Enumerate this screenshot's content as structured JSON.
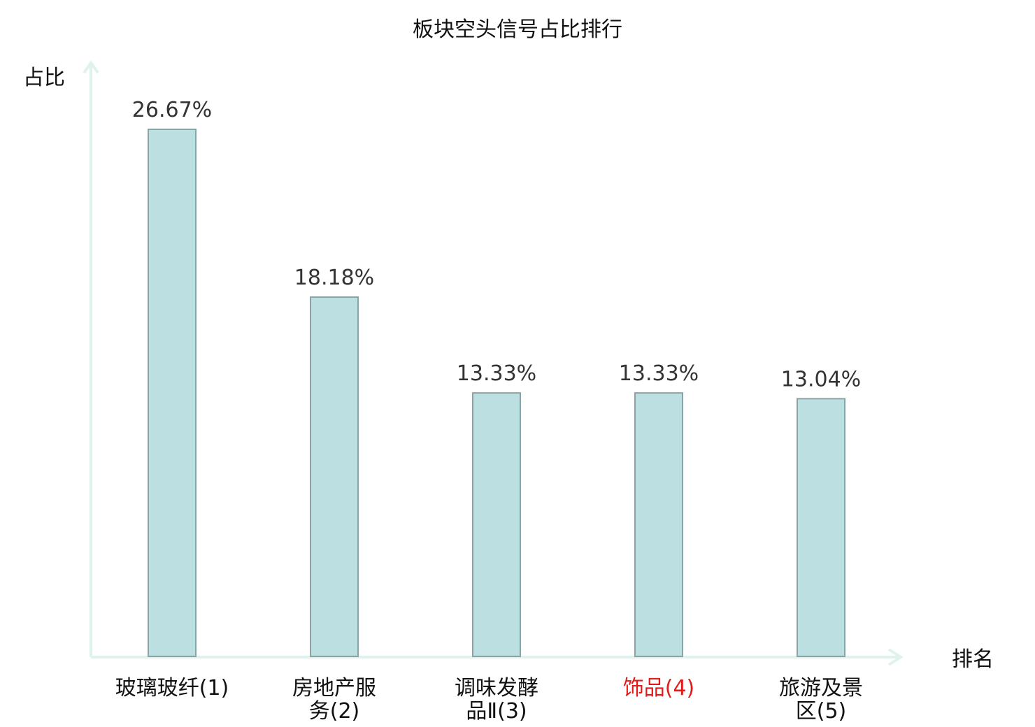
{
  "chart_data": {
    "type": "bar",
    "title": "板块空头信号占比排行",
    "xlabel": "排名",
    "ylabel": "占比",
    "categories": [
      [
        "玻璃玻纤(1)"
      ],
      [
        "房地产服",
        "务(2)"
      ],
      [
        "调味发酵",
        "品Ⅱ(3)"
      ],
      [
        "饰品(4)"
      ],
      [
        "旅游及景",
        "区(5)"
      ]
    ],
    "values": [
      26.67,
      18.18,
      13.33,
      13.33,
      13.04
    ],
    "value_labels": [
      "26.67%",
      "18.18%",
      "13.33%",
      "13.33%",
      "13.04%"
    ],
    "highlight_index": 3,
    "ylim": [
      0,
      30
    ],
    "grid": false
  },
  "colors": {
    "bar_fill": "#bce0e2",
    "bar_stroke": "#8aa3a5",
    "axis": "#dff2ee",
    "highlight_label": "#e31a1a"
  }
}
